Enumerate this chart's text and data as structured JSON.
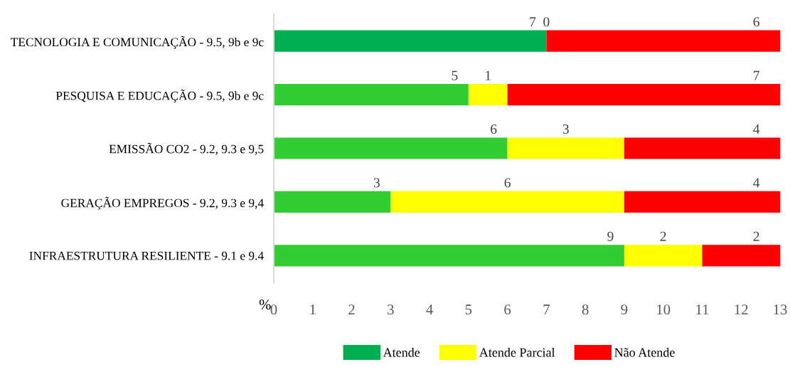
{
  "chart_data": {
    "type": "bar",
    "orientation": "horizontal",
    "stacked": true,
    "categories": [
      "TECNOLOGIA E COMUNICAÇÃO - 9.5, 9b e 9c",
      "PESQUISA E EDUCAÇÃO - 9.5, 9b e 9c",
      "EMISSÃO CO2 - 9.2, 9.3 e 9,5",
      "GERAÇÃO EMPREGOS - 9.2, 9.3 e 9,4",
      "INFRAESTRUTURA RESILIENTE - 9.1 e 9.4"
    ],
    "series": [
      {
        "name": "Atende",
        "color": "#00b050",
        "colors": [
          "#00b050",
          "#33cc33",
          "#33cc33",
          "#33cc33",
          "#33cc33"
        ],
        "values": [
          7,
          5,
          6,
          3,
          9
        ],
        "value_labels": [
          "7",
          "5",
          "6",
          "3",
          "9"
        ]
      },
      {
        "name": "Atende Parcial",
        "color": "#ffff00",
        "values": [
          0,
          1,
          3,
          6,
          2
        ],
        "value_labels": [
          null,
          "1",
          "3",
          "6",
          "2"
        ]
      },
      {
        "name": "Não Atende",
        "color": "#ff0000",
        "values": [
          6,
          7,
          4,
          4,
          2
        ],
        "value_labels": [
          "6",
          "7",
          "4",
          "4",
          "2"
        ]
      }
    ],
    "annotations": [
      {
        "text": "0",
        "x": 7,
        "y": "TECNOLOGIA E COMUNICAÇÃO - 9.5, 9b e 9c"
      }
    ],
    "xlim": [
      0,
      13
    ],
    "xticks": [
      0,
      1,
      2,
      3,
      4,
      5,
      6,
      7,
      8,
      9,
      10,
      11,
      12,
      13
    ],
    "xlabel": "%",
    "legend": "bottom",
    "grid": false
  }
}
